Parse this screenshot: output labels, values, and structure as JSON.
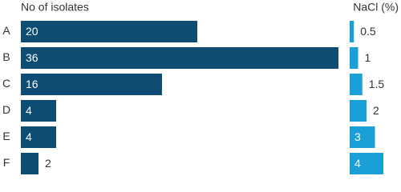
{
  "chart_data": [
    {
      "type": "bar",
      "title": "No of isolates",
      "categories": [
        "A",
        "B",
        "C",
        "D",
        "E",
        "F"
      ],
      "values": [
        20,
        36,
        16,
        4,
        4,
        2
      ],
      "color": "#0e4c73"
    },
    {
      "type": "bar",
      "title": "NaCl (%)",
      "values": [
        0.5,
        1,
        1.5,
        2,
        3,
        4
      ],
      "color": "#1a9fd6"
    }
  ]
}
